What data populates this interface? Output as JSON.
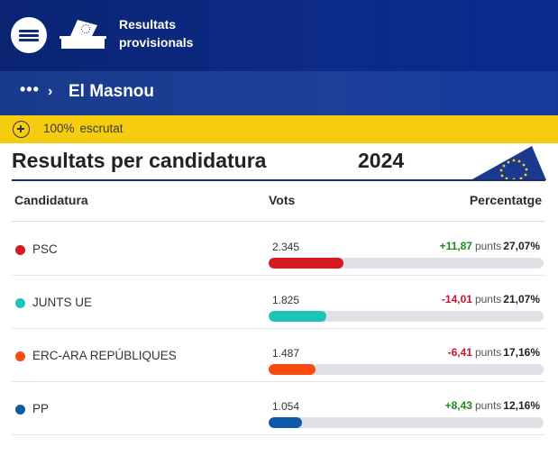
{
  "header": {
    "title_line1": "Resultats",
    "title_line2": "provisionals"
  },
  "breadcrumb": {
    "more": "•••",
    "separator": "›",
    "title": "El Masnou"
  },
  "status": {
    "percent": "100%",
    "label": "escrutat"
  },
  "section": {
    "title": "Resultats per candidatura",
    "year": "2024"
  },
  "table": {
    "columns": {
      "candidacy": "Candidatura",
      "votes": "Vots",
      "percentage": "Percentatge"
    },
    "unit": "punts",
    "rows": [
      {
        "party": "PSC",
        "votes": "2.345",
        "delta": "+11,87",
        "percentage": "27,07%",
        "share": 27.07,
        "color": "#d71920",
        "trend": "up"
      },
      {
        "party": "JUNTS UE",
        "votes": "1.825",
        "delta": "-14,01",
        "percentage": "21,07%",
        "share": 21.07,
        "color": "#1bc4b4",
        "trend": "down"
      },
      {
        "party": "ERC-ARA REPÚBLIQUES",
        "votes": "1.487",
        "delta": "-6,41",
        "percentage": "17,16%",
        "share": 17.16,
        "color": "#f94a0f",
        "trend": "down"
      },
      {
        "party": "PP",
        "votes": "1.054",
        "delta": "+8,43",
        "percentage": "12,16%",
        "share": 12.16,
        "color": "#0f5aa8",
        "trend": "up"
      }
    ]
  },
  "colors": {
    "header": "#0a2472",
    "status_bar": "#f6cc0e",
    "positive": "#1a8a1a",
    "negative": "#d10f2e"
  }
}
